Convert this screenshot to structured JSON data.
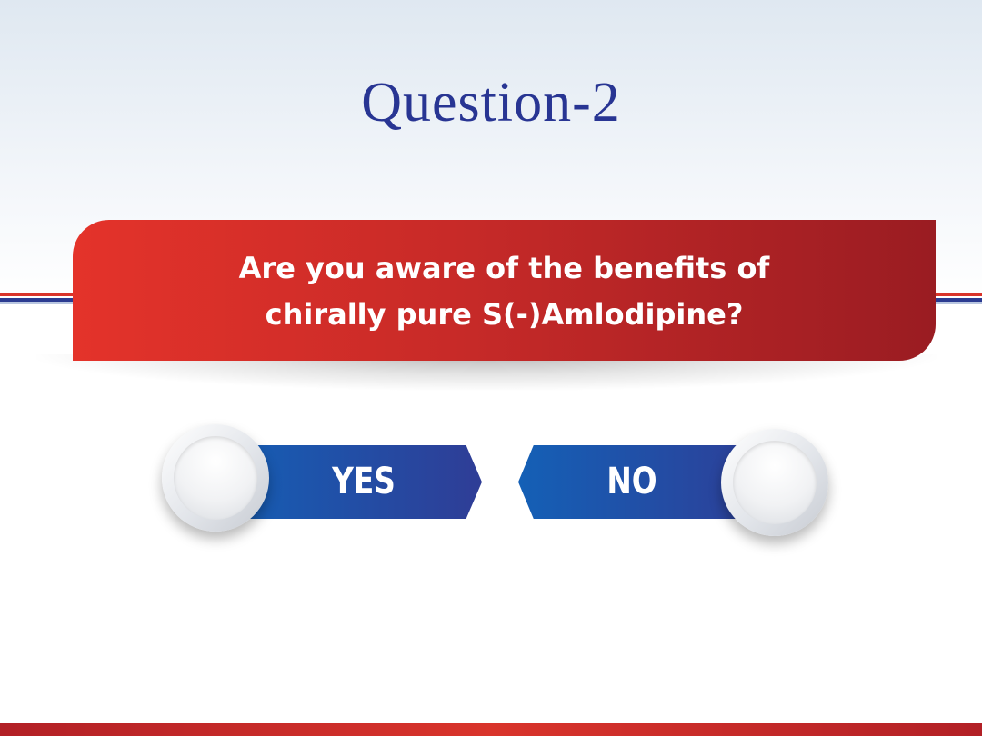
{
  "title": "Question-2",
  "question": {
    "line1": "Are you aware of the benefits of",
    "line2": "chirally pure S(-)Amlodipine?"
  },
  "options": {
    "yes_label": "YES",
    "no_label": "NO"
  },
  "colors": {
    "title": "#283593",
    "banner_start": "#e4332a",
    "banner_end": "#9a1c22",
    "button_blue_start": "#1460b6",
    "button_blue_end": "#2f3d96",
    "accent_red": "#d9342b"
  }
}
